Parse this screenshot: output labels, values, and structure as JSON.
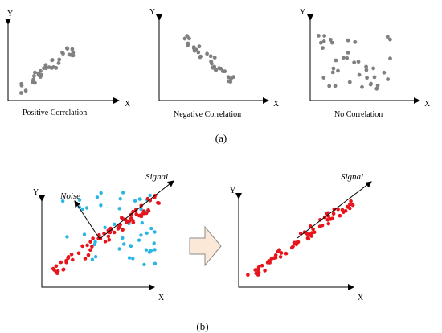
{
  "colors": {
    "gray_dot": "#808080",
    "red_dot": "#e8141b",
    "blue_dot": "#29b6e6",
    "arrow_fill": "#fbe8d7",
    "arrow_stroke": "#8a8a8a"
  },
  "panel_a": {
    "label": "(a)",
    "plots": [
      {
        "x_label": "X",
        "y_label": "Y",
        "caption": "Positive Correlation"
      },
      {
        "x_label": "X",
        "y_label": "Y",
        "caption": "Negative Correlation"
      },
      {
        "x_label": "X",
        "y_label": "Y",
        "caption": "No Correlation"
      }
    ]
  },
  "panel_b": {
    "label": "(b)",
    "left": {
      "x_label": "X",
      "y_label": "Y",
      "signal_label": "Signal",
      "noise_label": "Noise"
    },
    "right": {
      "x_label": "X",
      "y_label": "Y",
      "signal_label": "Signal"
    },
    "transform_icon": "right-arrow-icon"
  }
}
